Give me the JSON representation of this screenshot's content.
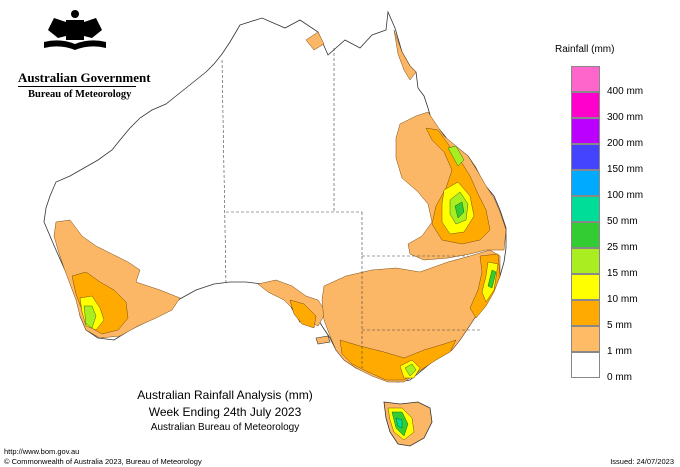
{
  "header": {
    "government": "Australian Government",
    "bureau": "Bureau of Meteorology"
  },
  "legend": {
    "title": "Rainfall (mm)",
    "items": [
      {
        "label": "",
        "color": "#ff66cc"
      },
      {
        "label": "400 mm",
        "color": "#ff00cc"
      },
      {
        "label": "300 mm",
        "color": "#bb00ff"
      },
      {
        "label": "200 mm",
        "color": "#4444ff"
      },
      {
        "label": "150 mm",
        "color": "#00aaff"
      },
      {
        "label": "100 mm",
        "color": "#00dd99"
      },
      {
        "label": "50 mm",
        "color": "#33cc33"
      },
      {
        "label": "25 mm",
        "color": "#aaee22"
      },
      {
        "label": "15 mm",
        "color": "#ffff00"
      },
      {
        "label": "10 mm",
        "color": "#ffaa00"
      },
      {
        "label": "5 mm",
        "color": "#ffbb66"
      },
      {
        "label": "1 mm",
        "color": "#ffffff"
      },
      {
        "label": "0 mm",
        "color": ""
      }
    ]
  },
  "caption": {
    "line1": "Australian Rainfall Analysis (mm)",
    "line2": "Week Ending 24th July 2023",
    "line3": "Australian Bureau of Meteorology"
  },
  "footer": {
    "url": "http://www.bom.gov.au",
    "copyright": "© Commonwealth of Australia 2023, Bureau of Meteorology",
    "issued": "Issued: 24/07/2023"
  },
  "colors": {
    "rain_1mm": "#fbb765",
    "rain_5mm": "#ffaa00",
    "rain_10mm": "#ffff00",
    "rain_15mm": "#aaee22",
    "rain_25mm": "#33cc33"
  }
}
